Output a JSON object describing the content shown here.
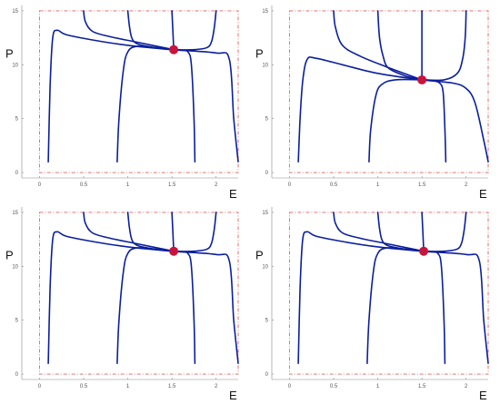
{
  "chart_data": [
    {
      "type": "line",
      "xlabel": "E",
      "ylabel": "P",
      "xticks": [
        "0",
        "0.5",
        "1",
        "1.5",
        "2"
      ],
      "yticks": [
        "0",
        "5",
        "10",
        "15"
      ],
      "xlim": [
        -0.2,
        2.25
      ],
      "ylim": [
        -0.5,
        15.5
      ],
      "boundary_box": {
        "x": [
          0,
          2.25
        ],
        "y": [
          0,
          15
        ]
      },
      "equilibrium": {
        "x": 1.52,
        "y": 11.4
      },
      "series": [
        {
          "x": [
            0.1,
            0.12,
            0.15,
            0.2,
            0.3,
            0.6,
            1.0,
            1.5,
            2.0,
            2.15,
            2.2,
            2.25
          ],
          "y": [
            1,
            8,
            12.5,
            13.2,
            12.8,
            12.3,
            11.8,
            11.4,
            11.1,
            10.5,
            5,
            1
          ]
        },
        {
          "x": [
            0.88,
            0.9,
            0.95,
            1.0,
            1.1,
            1.3,
            1.52
          ],
          "y": [
            1,
            5,
            9.5,
            11.2,
            11.7,
            11.6,
            11.4
          ]
        },
        {
          "x": [
            1.76,
            1.75,
            1.72,
            1.68,
            1.6,
            1.52
          ],
          "y": [
            1,
            5,
            10,
            11.2,
            11.35,
            11.4
          ]
        },
        {
          "x": [
            0.5,
            0.52,
            0.6,
            0.8,
            1.1,
            1.52
          ],
          "y": [
            15,
            14,
            13.1,
            12.6,
            12.1,
            11.4
          ]
        },
        {
          "x": [
            1.0,
            1.02,
            1.05,
            1.12,
            1.3,
            1.52
          ],
          "y": [
            15,
            13.5,
            12.4,
            11.9,
            11.6,
            11.4
          ]
        },
        {
          "x": [
            1.5,
            1.52
          ],
          "y": [
            15,
            11.4
          ]
        },
        {
          "x": [
            2.0,
            1.98,
            1.95,
            1.9,
            1.75,
            1.52
          ],
          "y": [
            15,
            13.5,
            12.2,
            11.6,
            11.4,
            11.4
          ]
        }
      ]
    },
    {
      "type": "line",
      "xlabel": "E",
      "ylabel": "P",
      "xticks": [
        "0",
        "0.5",
        "1",
        "1.5",
        "2"
      ],
      "yticks": [
        "0",
        "5",
        "10",
        "15"
      ],
      "xlim": [
        -0.2,
        2.25
      ],
      "ylim": [
        -0.5,
        15.5
      ],
      "boundary_box": {
        "x": [
          0,
          2.25
        ],
        "y": [
          0,
          15
        ]
      },
      "equilibrium": {
        "x": 1.5,
        "y": 8.6
      },
      "series": [
        {
          "x": [
            0.1,
            0.12,
            0.15,
            0.2,
            0.3,
            0.6,
            1.0,
            1.5,
            1.85,
            2.0,
            2.1,
            2.2,
            2.25
          ],
          "y": [
            1,
            5,
            8.5,
            10.5,
            10.6,
            10,
            9.2,
            8.6,
            8.3,
            7.8,
            6.5,
            3,
            1
          ]
        },
        {
          "x": [
            0.9,
            0.92,
            0.98,
            1.05,
            1.2,
            1.5
          ],
          "y": [
            1,
            4,
            7.2,
            8.2,
            8.6,
            8.6
          ]
        },
        {
          "x": [
            1.77,
            1.76,
            1.74,
            1.7,
            1.6,
            1.5
          ],
          "y": [
            1,
            4,
            7.4,
            8.3,
            8.55,
            8.6
          ]
        },
        {
          "x": [
            0.5,
            0.52,
            0.6,
            0.8,
            1.1,
            1.5
          ],
          "y": [
            15,
            13.5,
            11.8,
            10.8,
            9.8,
            8.6
          ]
        },
        {
          "x": [
            1.0,
            1.02,
            1.06,
            1.12,
            1.3,
            1.5
          ],
          "y": [
            15,
            12.5,
            10.8,
            9.7,
            9.0,
            8.6
          ]
        },
        {
          "x": [
            1.5,
            1.5
          ],
          "y": [
            15,
            8.6
          ]
        },
        {
          "x": [
            2.0,
            1.99,
            1.96,
            1.9,
            1.75,
            1.5
          ],
          "y": [
            15,
            12.5,
            10.5,
            9.2,
            8.6,
            8.6
          ]
        }
      ]
    },
    {
      "type": "line",
      "xlabel": "E",
      "ylabel": "P",
      "xticks": [
        "0",
        "0.5",
        "1",
        "1.5",
        "2"
      ],
      "yticks": [
        "0",
        "5",
        "10",
        "15"
      ],
      "xlim": [
        -0.2,
        2.25
      ],
      "ylim": [
        -0.5,
        15.5
      ],
      "boundary_box": {
        "x": [
          0,
          2.25
        ],
        "y": [
          0,
          15
        ]
      },
      "equilibrium": {
        "x": 1.52,
        "y": 11.4
      },
      "series": [
        {
          "x": [
            0.1,
            0.12,
            0.15,
            0.2,
            0.3,
            0.6,
            1.0,
            1.5,
            2.0,
            2.15,
            2.2,
            2.25
          ],
          "y": [
            1,
            8,
            12.5,
            13.2,
            12.8,
            12.3,
            11.8,
            11.4,
            11.1,
            10.5,
            5,
            1
          ]
        },
        {
          "x": [
            0.88,
            0.9,
            0.95,
            1.0,
            1.1,
            1.3,
            1.52
          ],
          "y": [
            1,
            5,
            9.5,
            11.2,
            11.7,
            11.6,
            11.4
          ]
        },
        {
          "x": [
            1.76,
            1.75,
            1.72,
            1.68,
            1.6,
            1.52
          ],
          "y": [
            1,
            5,
            10,
            11.2,
            11.35,
            11.4
          ]
        },
        {
          "x": [
            0.5,
            0.52,
            0.6,
            0.8,
            1.1,
            1.52
          ],
          "y": [
            15,
            14,
            13.1,
            12.6,
            12.1,
            11.4
          ]
        },
        {
          "x": [
            1.0,
            1.02,
            1.05,
            1.12,
            1.3,
            1.52
          ],
          "y": [
            15,
            13.5,
            12.4,
            11.9,
            11.6,
            11.4
          ]
        },
        {
          "x": [
            1.5,
            1.52
          ],
          "y": [
            15,
            11.4
          ]
        },
        {
          "x": [
            2.0,
            1.98,
            1.95,
            1.9,
            1.75,
            1.52
          ],
          "y": [
            15,
            13.5,
            12.2,
            11.6,
            11.4,
            11.4
          ]
        }
      ]
    },
    {
      "type": "line",
      "xlabel": "E",
      "ylabel": "P",
      "xticks": [
        "0",
        "0.5",
        "1",
        "1.5",
        "2"
      ],
      "yticks": [
        "0",
        "5",
        "10",
        "15"
      ],
      "xlim": [
        -0.2,
        2.25
      ],
      "ylim": [
        -0.5,
        15.5
      ],
      "boundary_box": {
        "x": [
          0,
          2.25
        ],
        "y": [
          0,
          15
        ]
      },
      "equilibrium": {
        "x": 1.52,
        "y": 11.4
      },
      "series": [
        {
          "x": [
            0.1,
            0.12,
            0.15,
            0.2,
            0.3,
            0.6,
            1.0,
            1.5,
            2.0,
            2.15,
            2.2,
            2.25
          ],
          "y": [
            1,
            8,
            12.5,
            13.2,
            12.8,
            12.3,
            11.8,
            11.4,
            11.1,
            10.5,
            5,
            1
          ]
        },
        {
          "x": [
            0.88,
            0.9,
            0.95,
            1.0,
            1.1,
            1.3,
            1.52
          ],
          "y": [
            1,
            5,
            9.5,
            11.2,
            11.7,
            11.6,
            11.4
          ]
        },
        {
          "x": [
            1.76,
            1.75,
            1.72,
            1.68,
            1.6,
            1.52
          ],
          "y": [
            1,
            5,
            10,
            11.2,
            11.35,
            11.4
          ]
        },
        {
          "x": [
            0.5,
            0.52,
            0.6,
            0.8,
            1.1,
            1.52
          ],
          "y": [
            15,
            14,
            13.1,
            12.6,
            12.1,
            11.4
          ]
        },
        {
          "x": [
            1.0,
            1.02,
            1.05,
            1.12,
            1.3,
            1.52
          ],
          "y": [
            15,
            13.5,
            12.4,
            11.9,
            11.6,
            11.4
          ]
        },
        {
          "x": [
            1.5,
            1.52
          ],
          "y": [
            15,
            11.4
          ]
        },
        {
          "x": [
            2.0,
            1.98,
            1.95,
            1.9,
            1.75,
            1.52
          ],
          "y": [
            15,
            13.5,
            12.2,
            11.6,
            11.4,
            11.4
          ]
        }
      ]
    }
  ],
  "colors": {
    "curve": "#0b1f9c",
    "equilibrium": "#c8143c",
    "boundary": "#e06060",
    "axis": "#888888"
  }
}
